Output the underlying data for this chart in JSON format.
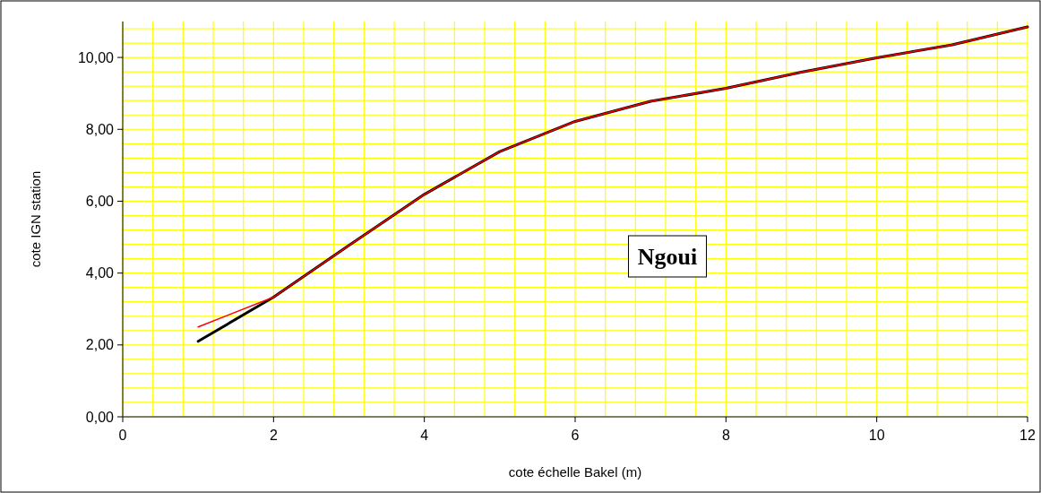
{
  "chart_data": {
    "type": "line",
    "xlabel": "cote échelle Bakel (m)",
    "ylabel": "cote IGN station",
    "x": [
      1,
      2,
      3,
      4,
      5,
      6,
      7,
      8,
      9,
      10,
      11,
      12
    ],
    "series": [
      {
        "color": "#000000",
        "values": [
          2.1,
          3.33,
          4.77,
          6.19,
          7.38,
          8.22,
          8.78,
          9.14,
          9.59,
          9.99,
          10.35,
          10.85
        ]
      },
      {
        "color": "#ff0000",
        "values": [
          2.5,
          3.33,
          4.77,
          6.19,
          7.38,
          8.22,
          8.78,
          9.14,
          9.59,
          9.99,
          10.35,
          10.85
        ]
      }
    ],
    "xlim": [
      0,
      12
    ],
    "xticks": [
      0,
      2,
      4,
      6,
      8,
      10,
      12
    ],
    "ylim": [
      0,
      11
    ],
    "yticks": [
      {
        "value": 0,
        "label": "0,00"
      },
      {
        "value": 2,
        "label": "2,00"
      },
      {
        "value": 4,
        "label": "4,00"
      },
      {
        "value": 6,
        "label": "6,00"
      },
      {
        "value": 8,
        "label": "8,00"
      },
      {
        "value": 10,
        "label": "10,00"
      }
    ],
    "grid": true,
    "marker": "none",
    "line_style": "solid",
    "annotations": [
      "Ngoui"
    ]
  }
}
